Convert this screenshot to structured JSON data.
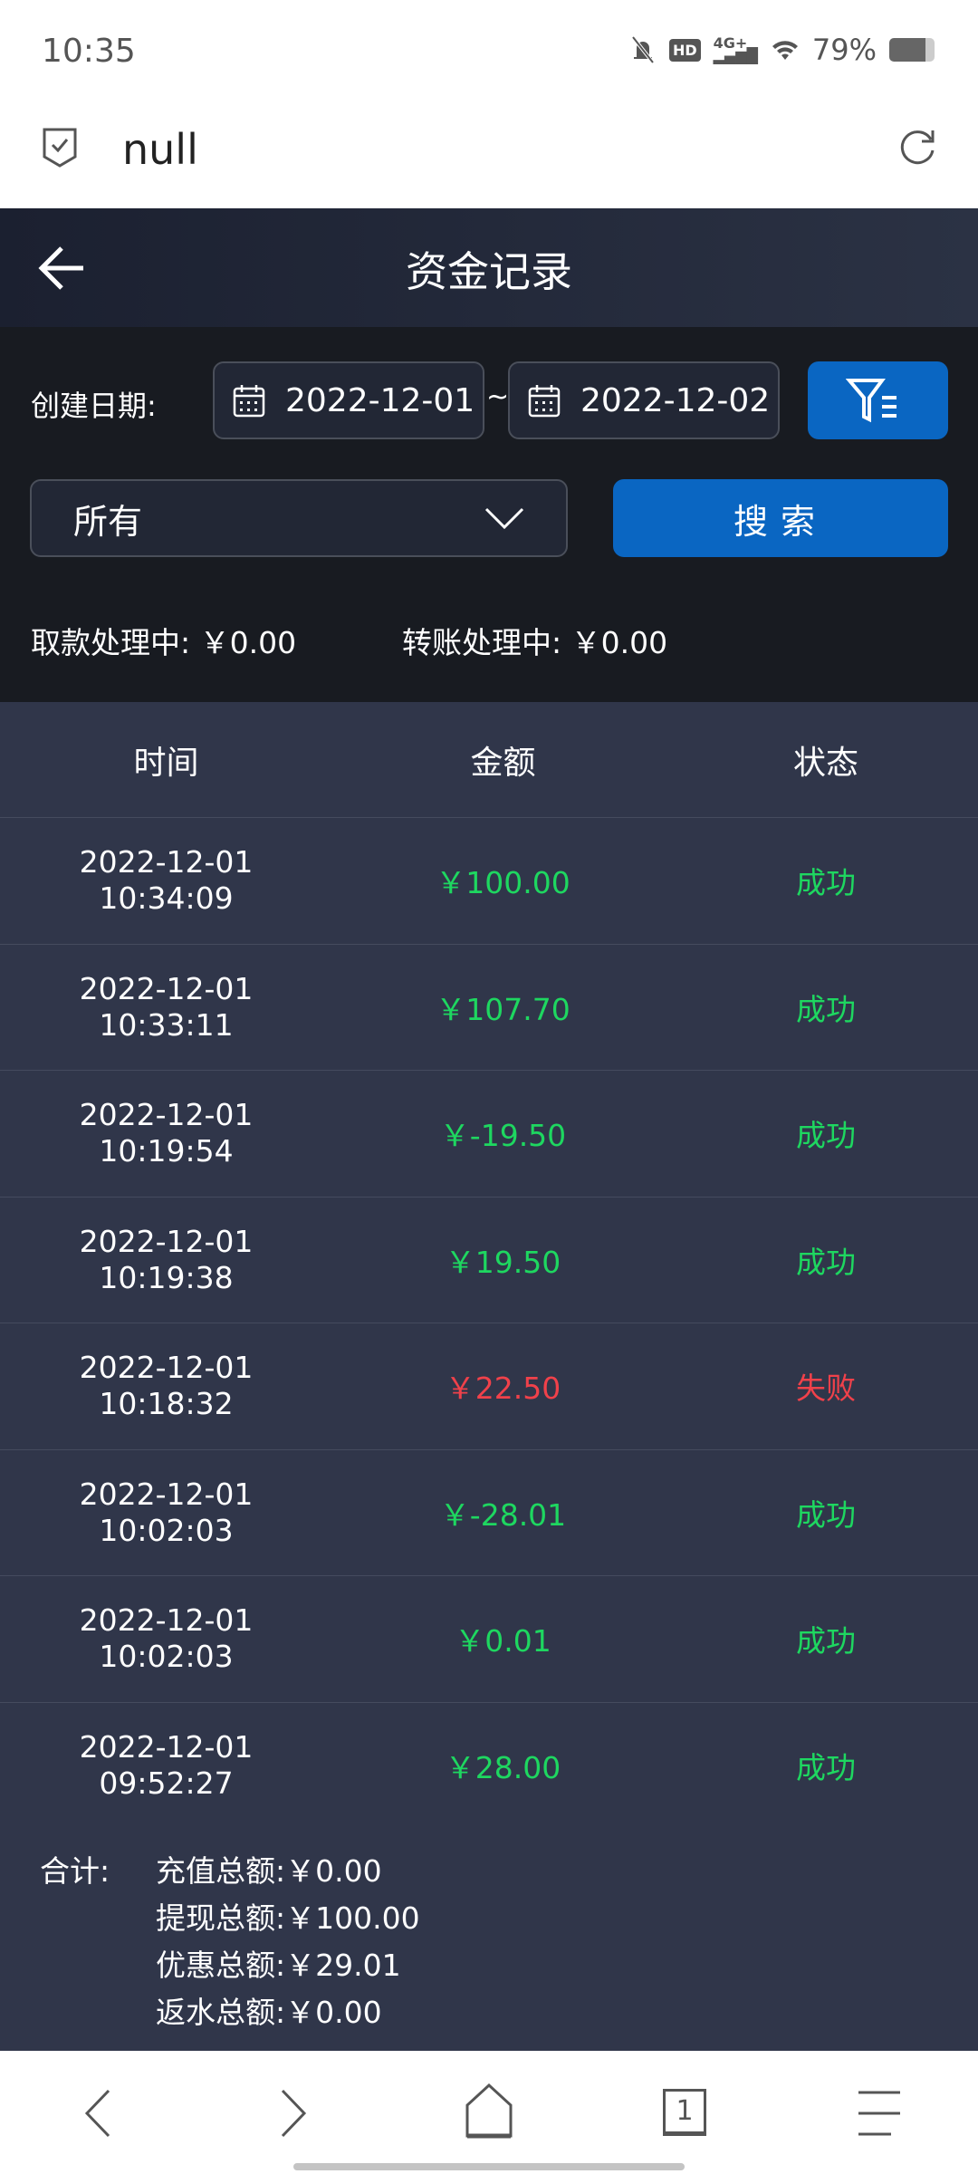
{
  "status_bar": {
    "time": "10:35",
    "battery": "79%",
    "network": "4G+",
    "icons": [
      "bell-off-icon",
      "hd-icon",
      "signal-icon",
      "wifi-icon",
      "battery-icon"
    ]
  },
  "browser": {
    "title": "null"
  },
  "header": {
    "title": "资金记录"
  },
  "filters": {
    "date_label": "创建日期:",
    "start_date": "2022-12-01",
    "separator": "~",
    "end_date": "2022-12-02",
    "type_selected": "所有",
    "search_label": "搜索",
    "pending_withdraw_label": "取款处理中:",
    "pending_withdraw": "￥0.00",
    "pending_transfer_label": "转账处理中:",
    "pending_transfer": "￥0.00"
  },
  "table": {
    "columns": [
      "时间",
      "金额",
      "状态"
    ],
    "rows": [
      {
        "date": "2022-12-01",
        "time": "10:34:09",
        "amount": "￥100.00",
        "status": "成功",
        "ok": true
      },
      {
        "date": "2022-12-01",
        "time": "10:33:11",
        "amount": "￥107.70",
        "status": "成功",
        "ok": true
      },
      {
        "date": "2022-12-01",
        "time": "10:19:54",
        "amount": "￥-19.50",
        "status": "成功",
        "ok": true
      },
      {
        "date": "2022-12-01",
        "time": "10:19:38",
        "amount": "￥19.50",
        "status": "成功",
        "ok": true
      },
      {
        "date": "2022-12-01",
        "time": "10:18:32",
        "amount": "￥22.50",
        "status": "失败",
        "ok": false
      },
      {
        "date": "2022-12-01",
        "time": "10:02:03",
        "amount": "￥-28.01",
        "status": "成功",
        "ok": true
      },
      {
        "date": "2022-12-01",
        "time": "10:02:03",
        "amount": "￥0.01",
        "status": "成功",
        "ok": true
      },
      {
        "date": "2022-12-01",
        "time": "09:52:27",
        "amount": "￥28.00",
        "status": "成功",
        "ok": true
      }
    ]
  },
  "summary": {
    "label": "合计:",
    "items": [
      {
        "label": "充值总额:",
        "value": "￥0.00"
      },
      {
        "label": "提现总额:",
        "value": "￥100.00"
      },
      {
        "label": "优惠总额:",
        "value": "￥29.01"
      },
      {
        "label": "返水总额:",
        "value": "￥0.00"
      }
    ]
  },
  "nav": {
    "tab_count": "1"
  },
  "colors": {
    "success": "#1ed760",
    "failure": "#f0414a",
    "accent": "#0a66c2"
  }
}
